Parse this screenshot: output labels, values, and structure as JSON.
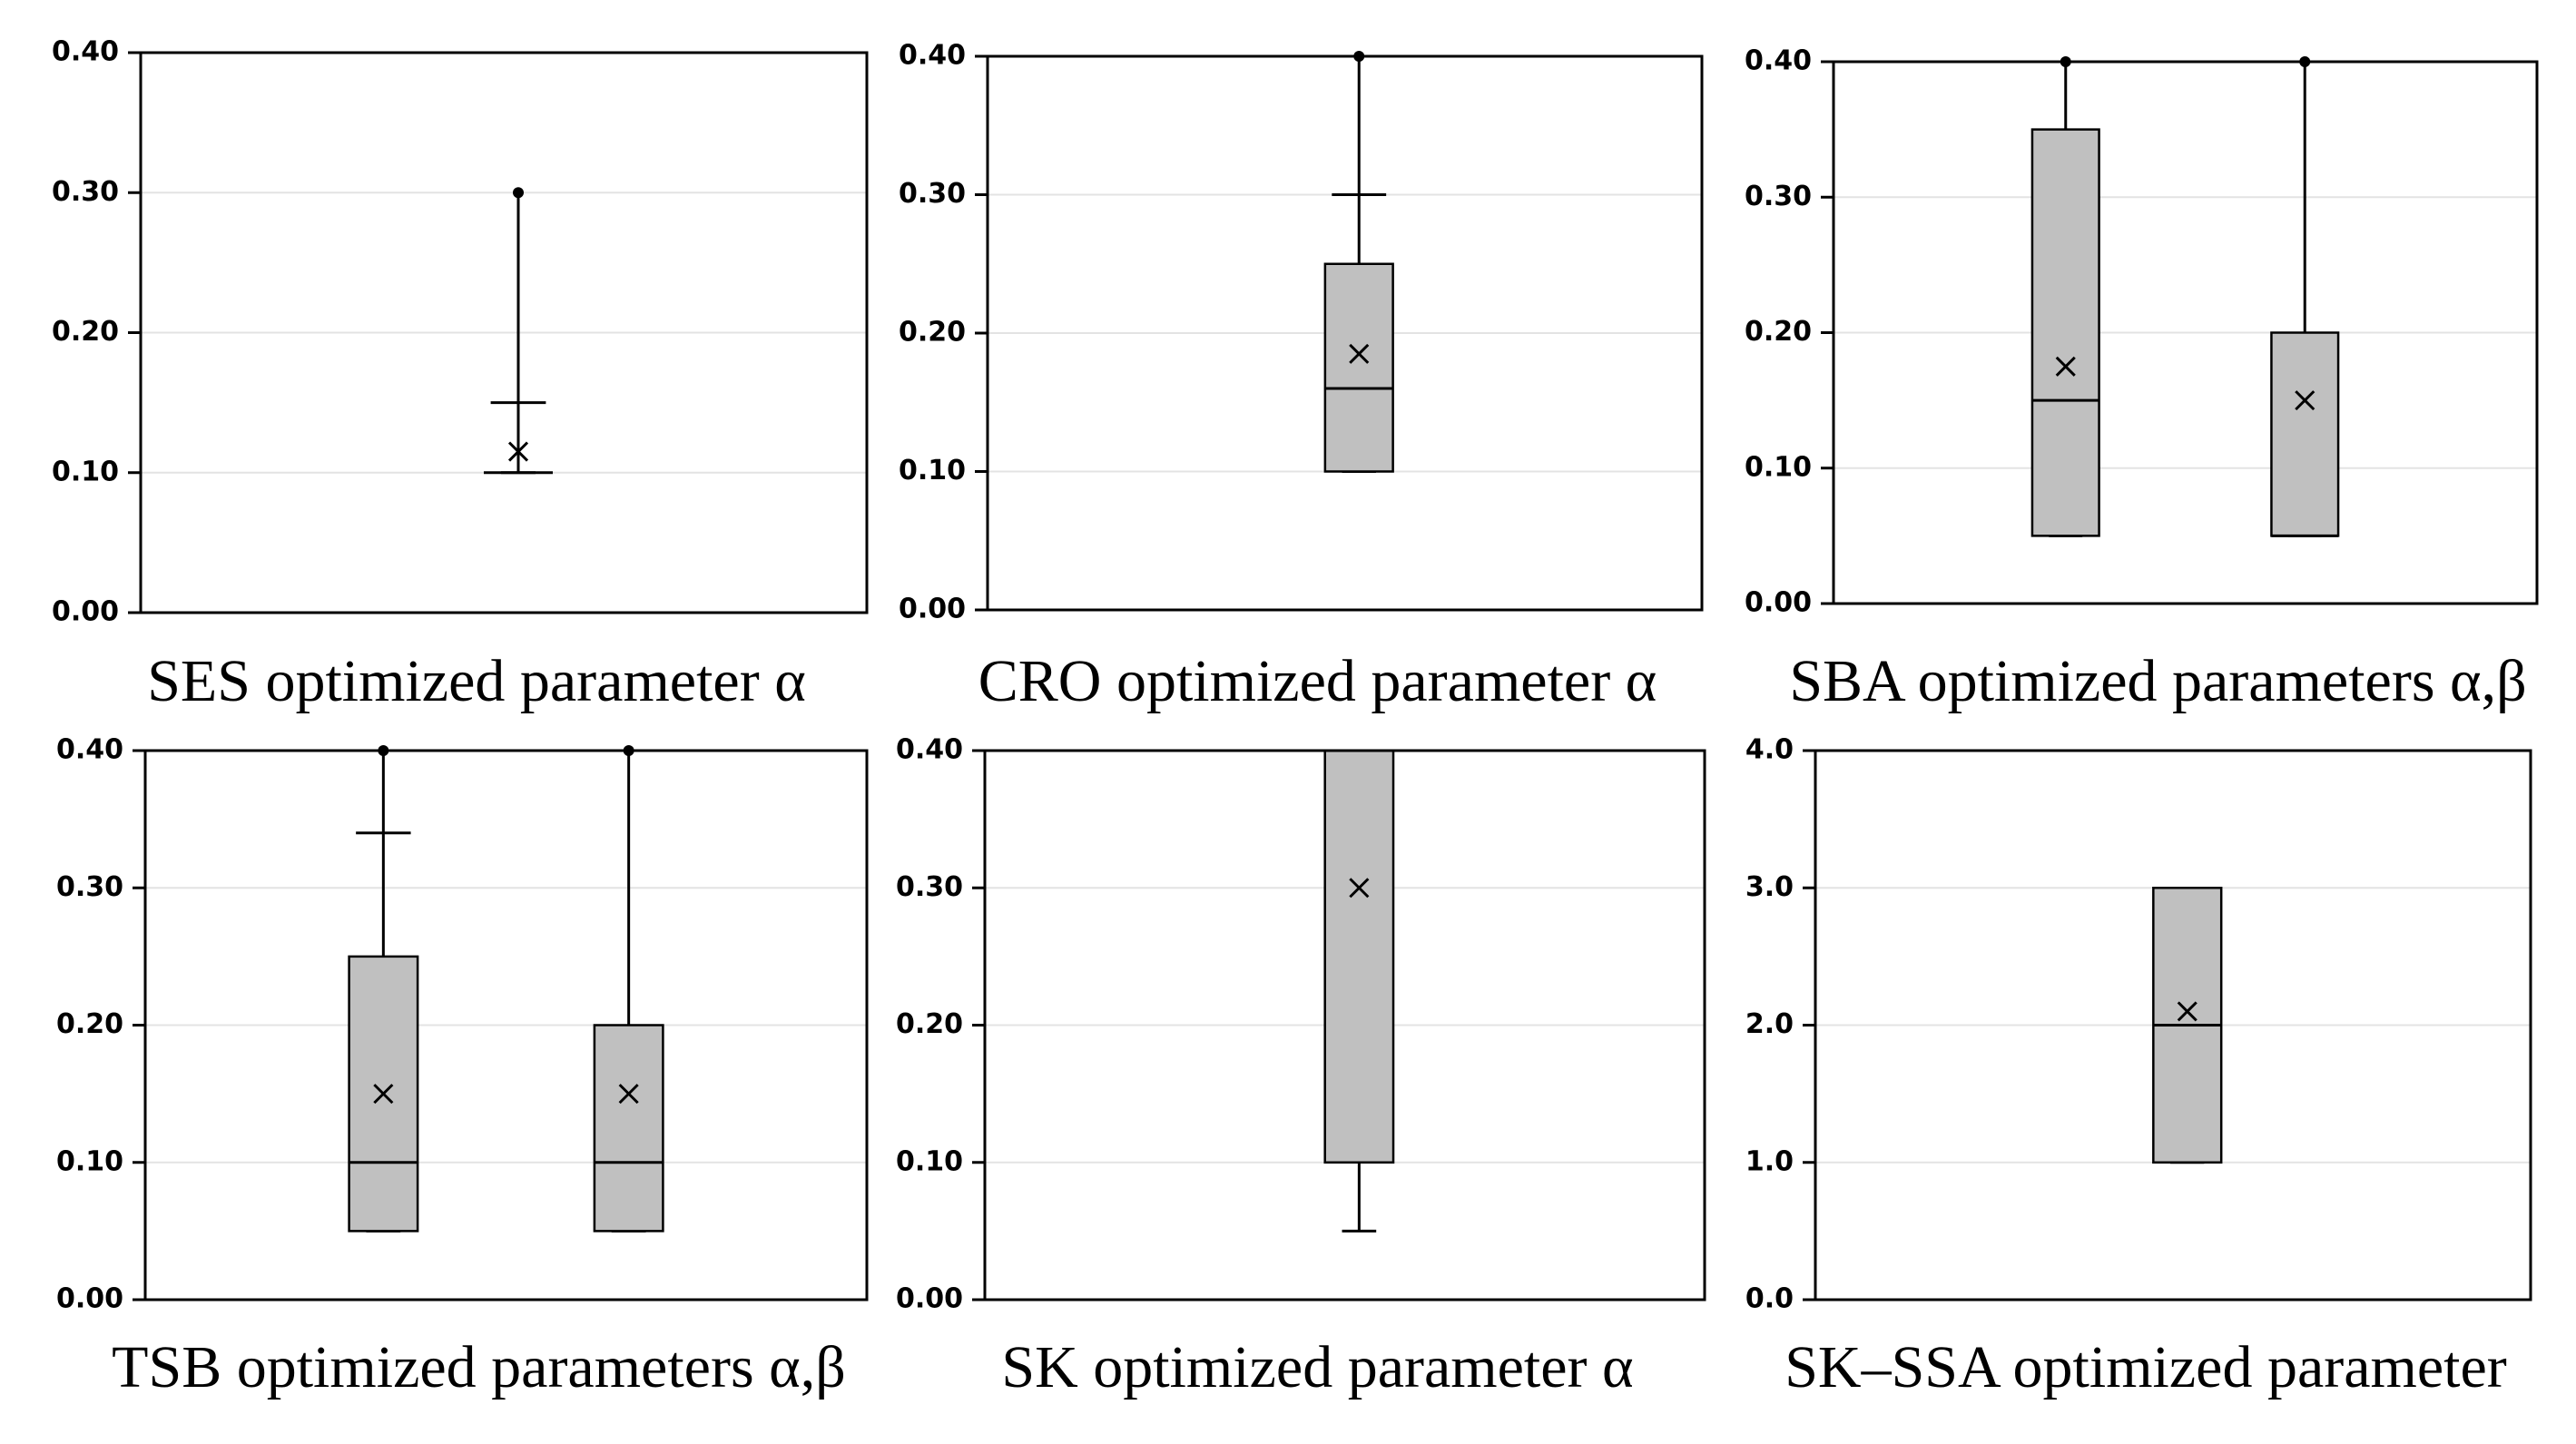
{
  "chart_data": [
    {
      "type": "box",
      "title": "SES optimized parameter α",
      "ylim": [
        0,
        0.4
      ],
      "yticks": [
        {
          "value": 0,
          "label": "0.00"
        },
        {
          "value": 0.1,
          "label": "0.10"
        },
        {
          "value": 0.2,
          "label": "0.20"
        },
        {
          "value": 0.3,
          "label": "0.30"
        },
        {
          "value": 0.4,
          "label": "0.40"
        }
      ],
      "boxes": [
        {
          "min": 0.1,
          "q1": 0.1,
          "median": 0.1,
          "q3": 0.1,
          "cap": 0.15,
          "max": 0.3,
          "mean": 0.115
        }
      ]
    },
    {
      "type": "box",
      "title": "CRO optimized parameter α",
      "ylim": [
        0,
        0.4
      ],
      "yticks": [
        {
          "value": 0,
          "label": "0.00"
        },
        {
          "value": 0.1,
          "label": "0.10"
        },
        {
          "value": 0.2,
          "label": "0.20"
        },
        {
          "value": 0.3,
          "label": "0.30"
        },
        {
          "value": 0.4,
          "label": "0.40"
        }
      ],
      "boxes": [
        {
          "min": 0.1,
          "q1": 0.1,
          "median": 0.16,
          "q3": 0.25,
          "cap": 0.3,
          "max": 0.4,
          "mean": 0.185
        }
      ]
    },
    {
      "type": "box",
      "title": "SBA optimized parameters α,β",
      "ylim": [
        0,
        0.4
      ],
      "yticks": [
        {
          "value": 0,
          "label": "0.00"
        },
        {
          "value": 0.1,
          "label": "0.10"
        },
        {
          "value": 0.2,
          "label": "0.20"
        },
        {
          "value": 0.3,
          "label": "0.30"
        },
        {
          "value": 0.4,
          "label": "0.40"
        }
      ],
      "boxes": [
        {
          "min": 0.05,
          "q1": 0.05,
          "median": 0.15,
          "q3": 0.35,
          "max": 0.4,
          "mean": 0.175
        },
        {
          "min": 0.05,
          "q1": 0.05,
          "median": 0.05,
          "q3": 0.2,
          "max": 0.4,
          "mean": 0.15
        }
      ]
    },
    {
      "type": "box",
      "title": "TSB optimized parameters α,β",
      "ylim": [
        0,
        0.4
      ],
      "yticks": [
        {
          "value": 0,
          "label": "0.00"
        },
        {
          "value": 0.1,
          "label": "0.10"
        },
        {
          "value": 0.2,
          "label": "0.20"
        },
        {
          "value": 0.3,
          "label": "0.30"
        },
        {
          "value": 0.4,
          "label": "0.40"
        }
      ],
      "boxes": [
        {
          "min": 0.05,
          "q1": 0.05,
          "median": 0.1,
          "q3": 0.25,
          "cap": 0.34,
          "max": 0.4,
          "mean": 0.15
        },
        {
          "min": 0.05,
          "q1": 0.05,
          "median": 0.1,
          "q3": 0.2,
          "max": 0.4,
          "mean": 0.15
        }
      ]
    },
    {
      "type": "box",
      "title": "SK optimized parameter α",
      "ylim": [
        0,
        0.4
      ],
      "yticks": [
        {
          "value": 0,
          "label": "0.00"
        },
        {
          "value": 0.1,
          "label": "0.10"
        },
        {
          "value": 0.2,
          "label": "0.20"
        },
        {
          "value": 0.3,
          "label": "0.30"
        },
        {
          "value": 0.4,
          "label": "0.40"
        }
      ],
      "boxes": [
        {
          "min": 0.05,
          "q1": 0.1,
          "median": 0.4,
          "q3": 0.4,
          "max": 0.4,
          "mean": 0.3
        }
      ]
    },
    {
      "type": "box",
      "title": "SK–SSA optimized parameter",
      "ylim": [
        0,
        4
      ],
      "yticks": [
        {
          "value": 0,
          "label": "0.0"
        },
        {
          "value": 1,
          "label": "1.0"
        },
        {
          "value": 2,
          "label": "2.0"
        },
        {
          "value": 3,
          "label": "3.0"
        },
        {
          "value": 4,
          "label": "4.0"
        }
      ],
      "boxes": [
        {
          "min": 1,
          "q1": 1,
          "median": 2,
          "q3": 3,
          "max": 3,
          "mean": 2.1
        }
      ]
    }
  ]
}
